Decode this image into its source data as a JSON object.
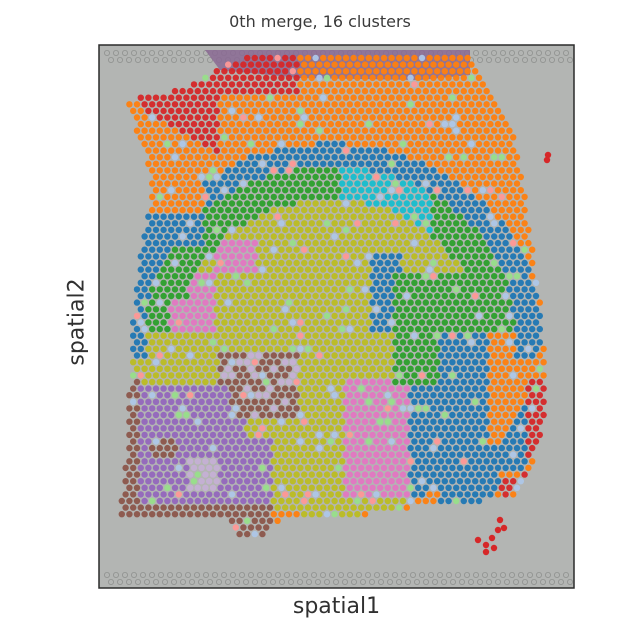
{
  "figure": {
    "title": "0th merge, 16 clusters",
    "xlabel": "spatial1",
    "ylabel": "spatial2"
  },
  "chart_data": {
    "type": "scatter",
    "title": "0th merge, 16 clusters",
    "xlabel": "spatial1",
    "ylabel": "spatial2",
    "grid": false,
    "legend": "none",
    "background": "tissue histology image (grey)",
    "n_clusters": 16,
    "cluster_colors": [
      "#d62728",
      "#ff7f0e",
      "#1f77b4",
      "#2ca02c",
      "#17becf",
      "#bcbd22",
      "#e377c2",
      "#9467bd",
      "#8c564b",
      "#aec7e8",
      "#98df8a",
      "#ff9896",
      "#c5b0d5",
      "#7f7f7f",
      "#ffbb78",
      "#c49c94"
    ]
  }
}
